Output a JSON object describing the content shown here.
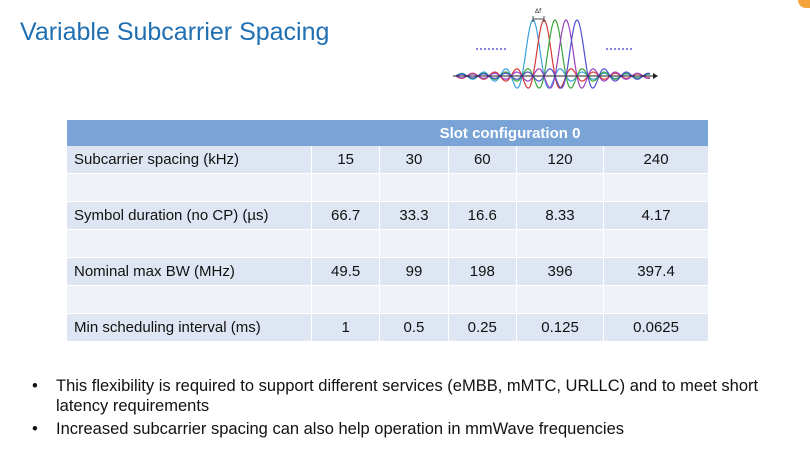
{
  "title": "Variable Subcarrier Spacing",
  "figure": {
    "delta_label": "Δf",
    "icon": "ofdm-subcarrier-waveforms-icon"
  },
  "table": {
    "header": "Slot configuration 0",
    "rows": [
      {
        "label": "Subcarrier spacing (kHz)",
        "values": [
          "15",
          "30",
          "60",
          "120",
          "240"
        ]
      },
      {
        "label": "Symbol duration (no CP) (µs)",
        "values": [
          "66.7",
          "33.3",
          "16.6",
          "8.33",
          "4.17"
        ]
      },
      {
        "label": "Nominal max BW (MHz)",
        "values": [
          "49.5",
          "99",
          "198",
          "396",
          "397.4"
        ]
      },
      {
        "label": "Min scheduling interval (ms)",
        "values": [
          "1",
          "0.5",
          "0.25",
          "0.125",
          "0.0625"
        ]
      }
    ]
  },
  "bullets": [
    "This flexibility is required to support different services (eMBB, mMTC, URLLC) and to meet short latency requirements",
    "Increased subcarrier spacing can also help operation in mmWave frequencies"
  ],
  "colors": {
    "title": "#1f6fb2",
    "table_header": "#7aa3d6",
    "table_row": "#dfe6f3",
    "table_spacer": "#eef1f8"
  }
}
